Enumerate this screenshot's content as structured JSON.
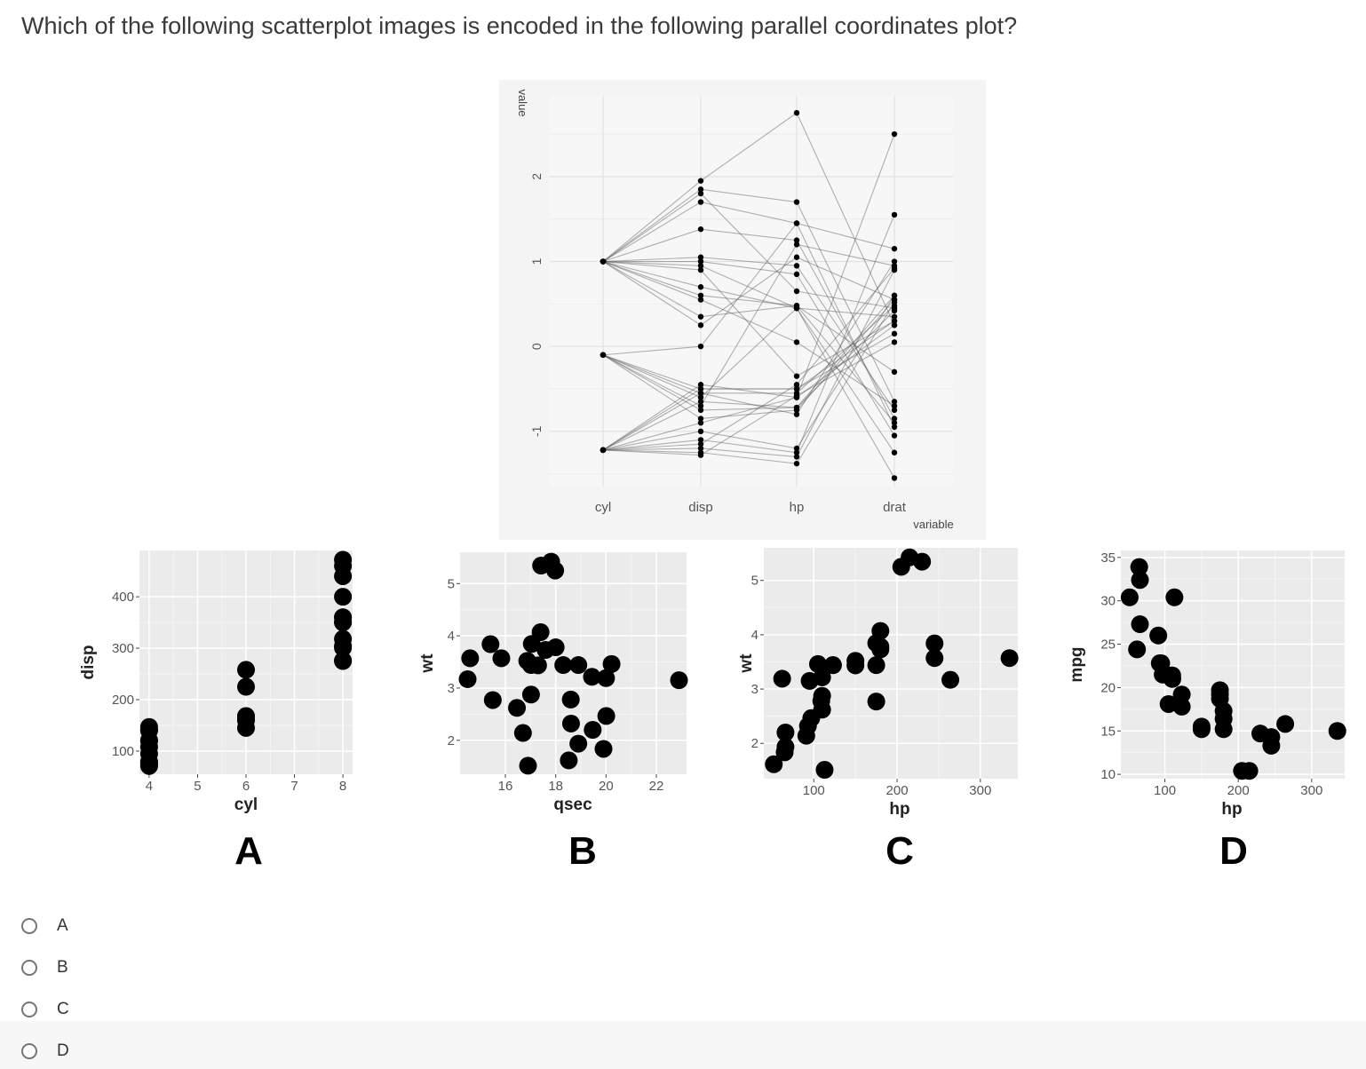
{
  "question": "Which of the following scatterplot images is encoded in the following parallel coordinates plot?",
  "chart_data": [
    {
      "type": "parallel-coordinates",
      "variables": [
        "cyl",
        "disp",
        "hp",
        "drat"
      ],
      "xlabel": "variable",
      "ylabel": "value",
      "ylim": [
        -1.65,
        2.95
      ],
      "yticks": [
        -1,
        0,
        1,
        2
      ],
      "grid": true,
      "series": [
        {
          "values": [
            1.0,
            1.95,
            2.75,
            0.25
          ]
        },
        {
          "values": [
            1.0,
            1.85,
            1.7,
            -0.65
          ]
        },
        {
          "values": [
            1.0,
            1.7,
            1.45,
            -0.95
          ]
        },
        {
          "values": [
            1.0,
            1.38,
            1.25,
            -0.85
          ]
        },
        {
          "values": [
            1.0,
            1.05,
            0.95,
            -0.75
          ]
        },
        {
          "values": [
            1.0,
            1.0,
            0.85,
            -1.05
          ]
        },
        {
          "values": [
            1.0,
            0.95,
            0.45,
            -1.25
          ]
        },
        {
          "values": [
            1.0,
            0.7,
            0.45,
            -1.55
          ]
        },
        {
          "values": [
            1.0,
            0.6,
            0.48,
            -0.9
          ]
        },
        {
          "values": [
            1.0,
            0.55,
            0.05,
            -0.7
          ]
        },
        {
          "values": [
            1.0,
            0.35,
            0.48,
            -0.3
          ]
        },
        {
          "values": [
            1.0,
            0.25,
            1.05,
            0.55
          ]
        },
        {
          "values": [
            1.0,
            0.9,
            -0.35,
            0.3
          ]
        },
        {
          "values": [
            1.0,
            1.8,
            0.65,
            0.45
          ]
        },
        {
          "values": [
            -0.1,
            0.0,
            1.45,
            1.15
          ]
        },
        {
          "values": [
            -0.1,
            -0.5,
            -0.5,
            0.15
          ]
        },
        {
          "values": [
            -0.1,
            -0.55,
            -0.55,
            0.48
          ]
        },
        {
          "values": [
            -0.1,
            -0.6,
            0.45,
            0.35
          ]
        },
        {
          "values": [
            -0.1,
            -0.7,
            1.2,
            0.95
          ]
        },
        {
          "values": [
            -0.1,
            -0.75,
            -0.72,
            0.6
          ]
        },
        {
          "values": [
            -0.1,
            -0.85,
            -0.75,
            0.55
          ]
        },
        {
          "values": [
            -1.22,
            -0.9,
            -0.6,
            0.25
          ]
        },
        {
          "values": [
            -1.22,
            -1.0,
            -1.2,
            0.6
          ]
        },
        {
          "values": [
            -1.22,
            -1.1,
            -1.25,
            1.55
          ]
        },
        {
          "values": [
            -1.22,
            -1.2,
            -1.3,
            0.9
          ]
        },
        {
          "values": [
            -1.22,
            -1.25,
            -1.38,
            0.52
          ]
        },
        {
          "values": [
            -1.22,
            -1.28,
            -0.58,
            0.05
          ]
        },
        {
          "values": [
            -1.22,
            -0.65,
            -0.72,
            0.42
          ]
        },
        {
          "values": [
            -1.22,
            -0.55,
            -0.8,
            1.0
          ]
        },
        {
          "values": [
            -1.22,
            -0.45,
            -0.6,
            2.5
          ]
        },
        {
          "values": [
            -1.22,
            -1.15,
            -0.45,
            0.92
          ]
        },
        {
          "values": [
            -1.22,
            -0.5,
            -0.5,
            0.3
          ]
        }
      ]
    },
    {
      "type": "scatter",
      "caption": "A",
      "xlabel": "cyl",
      "ylabel": "disp",
      "xlim": [
        3.8,
        8.2
      ],
      "ylim": [
        55,
        490
      ],
      "xticks": [
        4,
        5,
        6,
        7,
        8
      ],
      "yticks": [
        100,
        200,
        300,
        400
      ],
      "points": [
        [
          4,
          75
        ],
        [
          4,
          79
        ],
        [
          4,
          71
        ],
        [
          4,
          79
        ],
        [
          4,
          95
        ],
        [
          4,
          108
        ],
        [
          4,
          121
        ],
        [
          4,
          120
        ],
        [
          4,
          140
        ],
        [
          4,
          147
        ],
        [
          4,
          141
        ],
        [
          6,
          160
        ],
        [
          6,
          160
        ],
        [
          6,
          145
        ],
        [
          6,
          168
        ],
        [
          6,
          168
        ],
        [
          6,
          225
        ],
        [
          6,
          258
        ],
        [
          8,
          275
        ],
        [
          8,
          276
        ],
        [
          8,
          301
        ],
        [
          8,
          304
        ],
        [
          8,
          318
        ],
        [
          8,
          350
        ],
        [
          8,
          351
        ],
        [
          8,
          360
        ],
        [
          8,
          360
        ],
        [
          8,
          400
        ],
        [
          8,
          440
        ],
        [
          8,
          460
        ],
        [
          8,
          472
        ]
      ]
    },
    {
      "type": "scatter",
      "caption": "B",
      "xlabel": "qsec",
      "ylabel": "wt",
      "xlim": [
        14.2,
        23.2
      ],
      "ylim": [
        1.35,
        5.6
      ],
      "xticks": [
        16,
        18,
        20,
        22
      ],
      "yticks": [
        2,
        3,
        4,
        5
      ],
      "points": [
        [
          16.46,
          2.62
        ],
        [
          17.02,
          2.875
        ],
        [
          18.61,
          2.32
        ],
        [
          19.44,
          3.215
        ],
        [
          17.02,
          3.44
        ],
        [
          20.22,
          3.46
        ],
        [
          15.84,
          3.57
        ],
        [
          20.0,
          3.19
        ],
        [
          22.9,
          3.15
        ],
        [
          18.3,
          3.44
        ],
        [
          18.9,
          3.44
        ],
        [
          17.4,
          4.07
        ],
        [
          17.6,
          3.73
        ],
        [
          18.0,
          3.78
        ],
        [
          17.98,
          5.25
        ],
        [
          17.82,
          5.42
        ],
        [
          17.42,
          5.345
        ],
        [
          19.47,
          2.2
        ],
        [
          18.52,
          1.615
        ],
        [
          19.9,
          1.835
        ],
        [
          20.01,
          2.465
        ],
        [
          16.87,
          3.52
        ],
        [
          17.3,
          3.435
        ],
        [
          15.41,
          3.84
        ],
        [
          17.05,
          3.845
        ],
        [
          18.9,
          1.935
        ],
        [
          16.7,
          2.14
        ],
        [
          16.9,
          1.513
        ],
        [
          14.5,
          3.17
        ],
        [
          15.5,
          2.77
        ],
        [
          14.6,
          3.57
        ],
        [
          18.6,
          2.78
        ]
      ]
    },
    {
      "type": "scatter",
      "caption": "C",
      "xlabel": "hp",
      "ylabel": "wt",
      "xlim": [
        40,
        345
      ],
      "ylim": [
        1.35,
        5.6
      ],
      "xticks": [
        100,
        200,
        300
      ],
      "yticks": [
        2,
        3,
        4,
        5
      ],
      "points": [
        [
          110,
          2.62
        ],
        [
          110,
          2.875
        ],
        [
          93,
          2.32
        ],
        [
          110,
          3.215
        ],
        [
          175,
          3.44
        ],
        [
          105,
          3.46
        ],
        [
          245,
          3.57
        ],
        [
          62,
          3.19
        ],
        [
          95,
          3.15
        ],
        [
          123,
          3.44
        ],
        [
          123,
          3.44
        ],
        [
          180,
          4.07
        ],
        [
          180,
          3.73
        ],
        [
          180,
          3.78
        ],
        [
          205,
          5.25
        ],
        [
          215,
          5.424
        ],
        [
          230,
          5.345
        ],
        [
          66,
          2.2
        ],
        [
          52,
          1.615
        ],
        [
          65,
          1.835
        ],
        [
          97,
          2.465
        ],
        [
          150,
          3.52
        ],
        [
          150,
          3.435
        ],
        [
          245,
          3.84
        ],
        [
          175,
          3.845
        ],
        [
          66,
          1.935
        ],
        [
          91,
          2.14
        ],
        [
          113,
          1.513
        ],
        [
          264,
          3.17
        ],
        [
          175,
          2.77
        ],
        [
          335,
          3.57
        ],
        [
          109,
          2.78
        ]
      ]
    },
    {
      "type": "scatter",
      "caption": "D",
      "xlabel": "hp",
      "ylabel": "mpg",
      "xlim": [
        40,
        345
      ],
      "ylim": [
        9.5,
        35.8
      ],
      "xticks": [
        100,
        200,
        300
      ],
      "yticks": [
        10,
        15,
        20,
        25,
        30,
        35
      ],
      "points": [
        [
          110,
          21
        ],
        [
          110,
          21
        ],
        [
          93,
          22.8
        ],
        [
          110,
          21.4
        ],
        [
          175,
          18.7
        ],
        [
          105,
          18.1
        ],
        [
          245,
          14.3
        ],
        [
          62,
          24.4
        ],
        [
          95,
          22.8
        ],
        [
          123,
          19.2
        ],
        [
          123,
          17.8
        ],
        [
          180,
          16.4
        ],
        [
          180,
          17.3
        ],
        [
          180,
          15.2
        ],
        [
          205,
          10.4
        ],
        [
          215,
          10.4
        ],
        [
          230,
          14.7
        ],
        [
          66,
          32.4
        ],
        [
          52,
          30.4
        ],
        [
          65,
          33.9
        ],
        [
          97,
          21.5
        ],
        [
          150,
          15.5
        ],
        [
          150,
          15.2
        ],
        [
          245,
          13.3
        ],
        [
          175,
          19.2
        ],
        [
          66,
          27.3
        ],
        [
          91,
          26
        ],
        [
          113,
          30.4
        ],
        [
          264,
          15.8
        ],
        [
          175,
          19.7
        ],
        [
          335,
          15
        ],
        [
          109,
          21.4
        ]
      ]
    }
  ],
  "options": [
    "A",
    "B",
    "C",
    "D"
  ]
}
